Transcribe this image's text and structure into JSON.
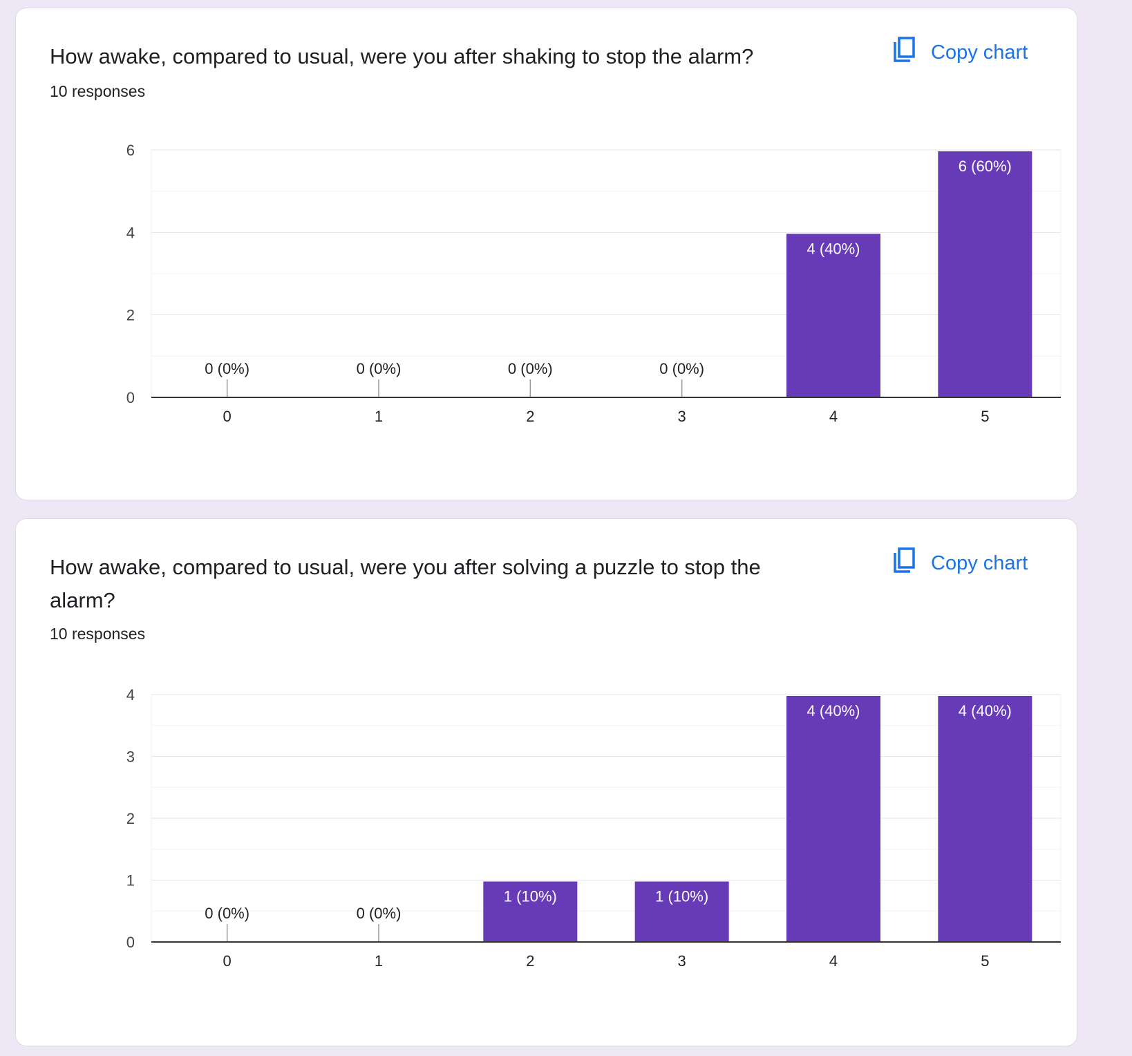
{
  "colors": {
    "bar": "#673ab7",
    "link": "#1a73e8",
    "background": "#ede7f6"
  },
  "cards": [
    {
      "title": "How awake, compared to usual, were you after shaking to stop the alarm?",
      "responses": "10 responses",
      "copy_label": "Copy chart",
      "copy_icon": "copy-icon"
    },
    {
      "title": "How awake, compared to usual, were you after solving a puzzle to stop the alarm?",
      "responses": "10 responses",
      "copy_label": "Copy chart",
      "copy_icon": "copy-icon"
    }
  ],
  "chart_data": [
    {
      "type": "bar",
      "categories": [
        "0",
        "1",
        "2",
        "3",
        "4",
        "5"
      ],
      "values": [
        0,
        0,
        0,
        0,
        4,
        6
      ],
      "data_labels": [
        "0 (0%)",
        "0 (0%)",
        "0 (0%)",
        "0 (0%)",
        "4 (40%)",
        "6 (60%)"
      ],
      "ylim": [
        0,
        6
      ],
      "yticks": [
        0,
        2,
        4,
        6
      ],
      "grid": true
    },
    {
      "type": "bar",
      "categories": [
        "0",
        "1",
        "2",
        "3",
        "4",
        "5"
      ],
      "values": [
        0,
        0,
        1,
        1,
        4,
        4
      ],
      "data_labels": [
        "0 (0%)",
        "0 (0%)",
        "1 (10%)",
        "1 (10%)",
        "4 (40%)",
        "4 (40%)"
      ],
      "ylim": [
        0,
        4
      ],
      "yticks": [
        0,
        1,
        2,
        3,
        4
      ],
      "grid": true
    }
  ]
}
